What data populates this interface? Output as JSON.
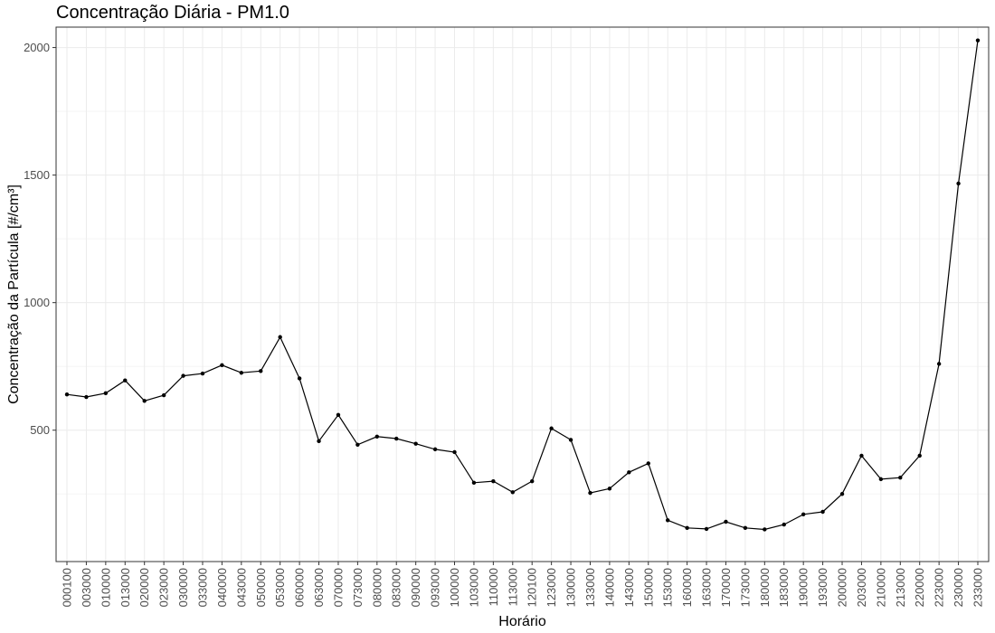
{
  "chart_data": {
    "type": "line",
    "title": "Concentração Diária - PM1.0",
    "xlabel": "Horário",
    "ylabel": "Concentração da Partícula [#/cm³]",
    "ylim": [
      -15,
      2080
    ],
    "yticks": [
      500,
      1000,
      1500,
      2000
    ],
    "grid": true,
    "legend": "none",
    "colors": {
      "line": "#000000",
      "point": "#000000",
      "grid_major": "#ebebeb",
      "grid_minor": "#f5f5f5",
      "border": "#333333",
      "background": "#ffffff"
    },
    "categories": [
      "000100",
      "003000",
      "010000",
      "013000",
      "020000",
      "023000",
      "030000",
      "033000",
      "040000",
      "043000",
      "050000",
      "053000",
      "060000",
      "063000",
      "070000",
      "073000",
      "080000",
      "083000",
      "090000",
      "093000",
      "100000",
      "103000",
      "110000",
      "113000",
      "120100",
      "123000",
      "130000",
      "133000",
      "140000",
      "143000",
      "150000",
      "153000",
      "160000",
      "163000",
      "170000",
      "173000",
      "180000",
      "183000",
      "190000",
      "193000",
      "200000",
      "203000",
      "210000",
      "213000",
      "220000",
      "223000",
      "230000",
      "233000"
    ],
    "values": [
      640,
      630,
      645,
      695,
      615,
      637,
      713,
      722,
      755,
      725,
      732,
      865,
      703,
      457,
      560,
      443,
      475,
      467,
      447,
      425,
      414,
      294,
      300,
      257,
      300,
      507,
      462,
      254,
      271,
      335,
      370,
      147,
      117,
      113,
      141,
      117,
      111,
      130,
      170,
      180,
      250,
      400,
      308,
      314,
      400,
      760,
      1467,
      2028
    ]
  }
}
